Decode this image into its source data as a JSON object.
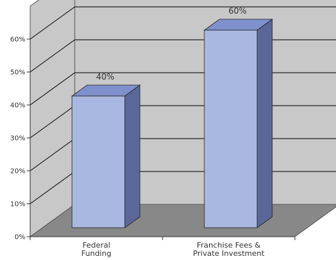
{
  "chart_data": {
    "type": "bar",
    "categories": [
      [
        "Federal",
        "Funding"
      ],
      [
        "Franchise Fees &",
        "Private Investment"
      ]
    ],
    "values": [
      40,
      60
    ],
    "value_labels": [
      "40%",
      "60%"
    ],
    "yticks": [
      0,
      10,
      20,
      30,
      40,
      50,
      60
    ],
    "ytick_labels": [
      "0%",
      "10%",
      "20%",
      "30%",
      "40%",
      "50%",
      "60%"
    ],
    "ylim": [
      0,
      70
    ],
    "grid": true,
    "three_d": true,
    "colors": {
      "bar_front": "#a9b8e0",
      "bar_top": "#7f90cc",
      "bar_side": "#5a6798",
      "wall": "#c8c8c8",
      "floor": "#888888",
      "grid": "#000000"
    }
  }
}
